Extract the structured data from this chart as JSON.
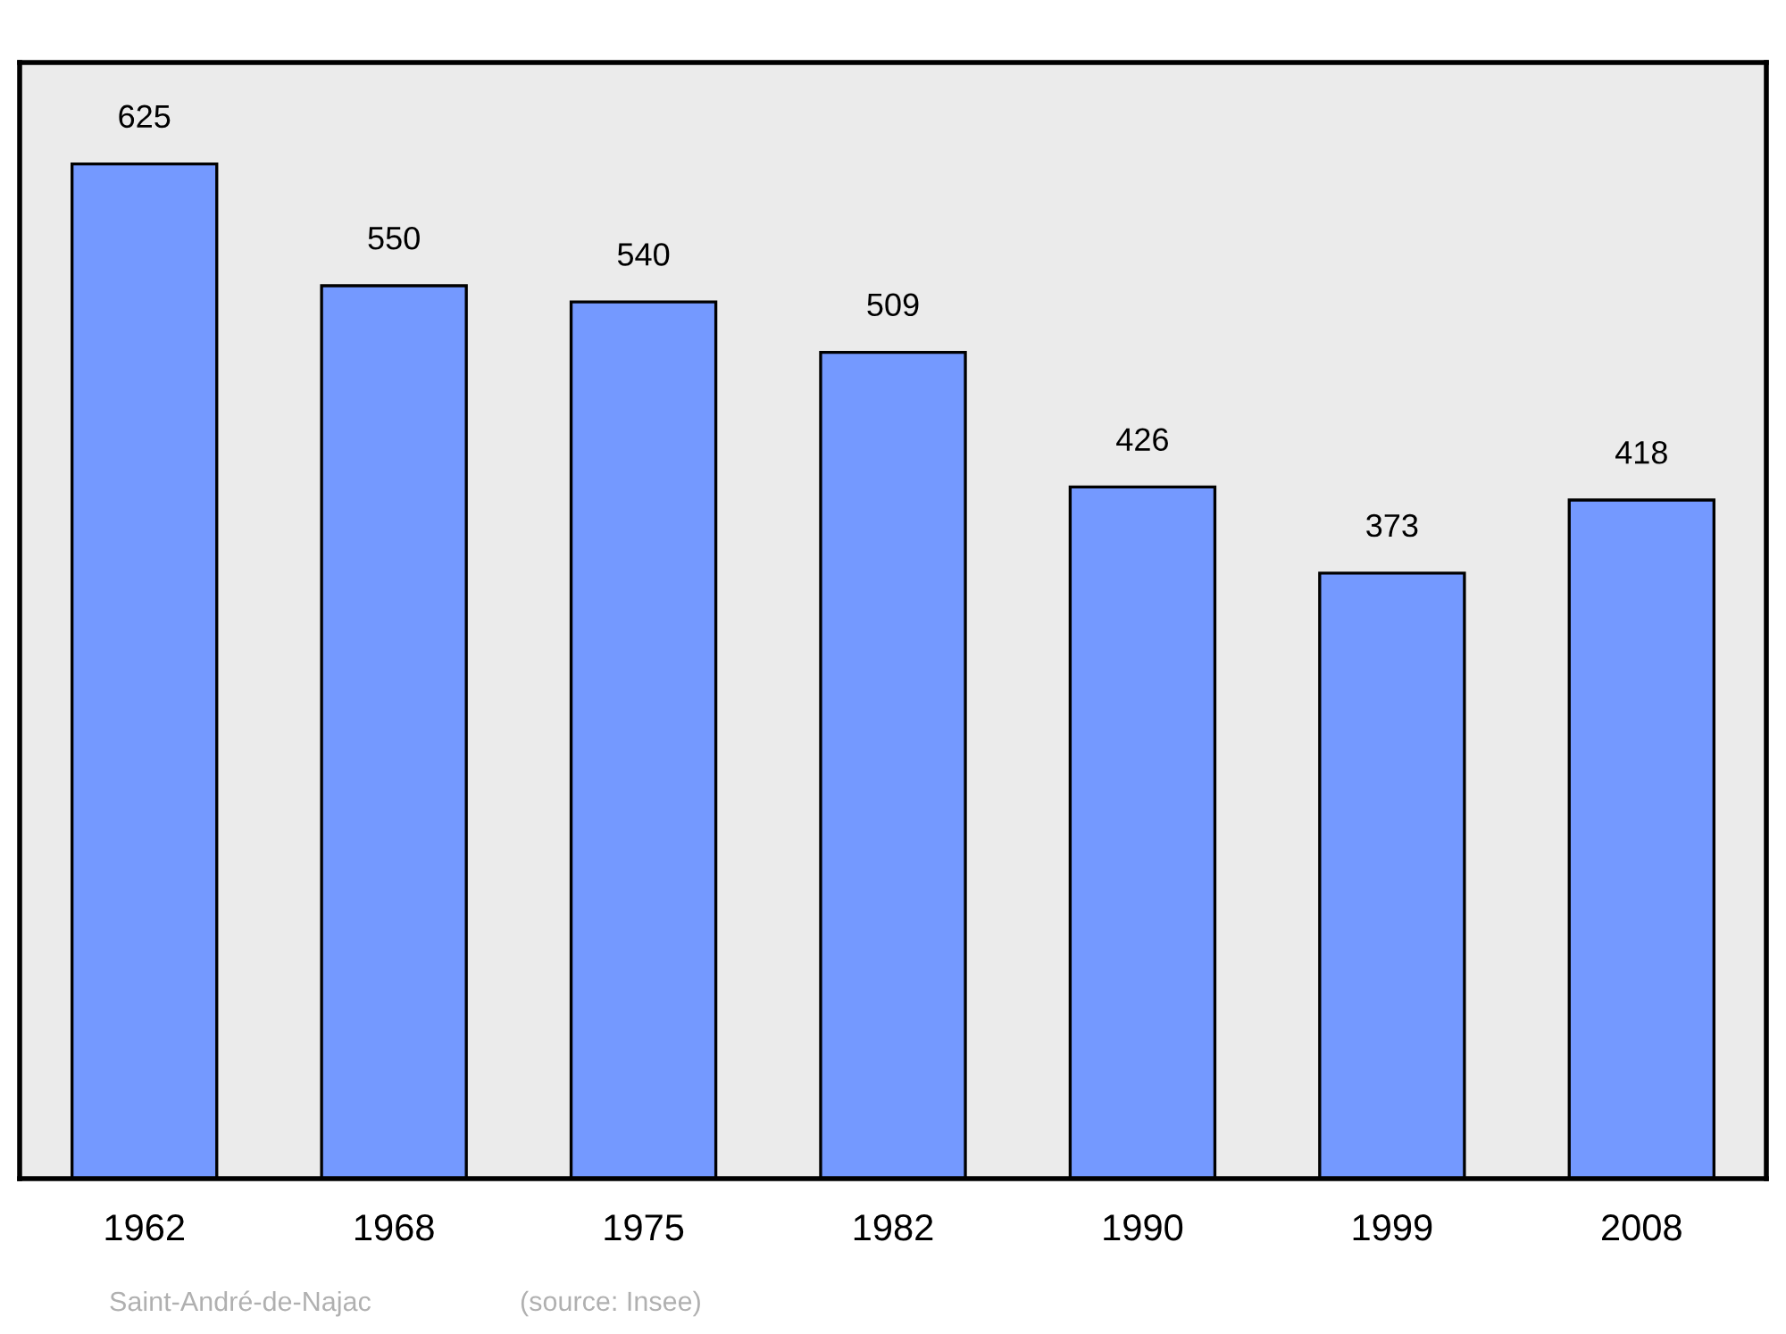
{
  "chart_data": {
    "type": "bar",
    "categories": [
      "1962",
      "1968",
      "1975",
      "1982",
      "1990",
      "1999",
      "2008"
    ],
    "values": [
      625,
      550,
      540,
      509,
      426,
      373,
      418
    ],
    "color": "#7499ff",
    "data_labels": true,
    "grid": false,
    "annotations": [
      "Saint-André-de-Najac",
      "(source: Insee)"
    ]
  }
}
